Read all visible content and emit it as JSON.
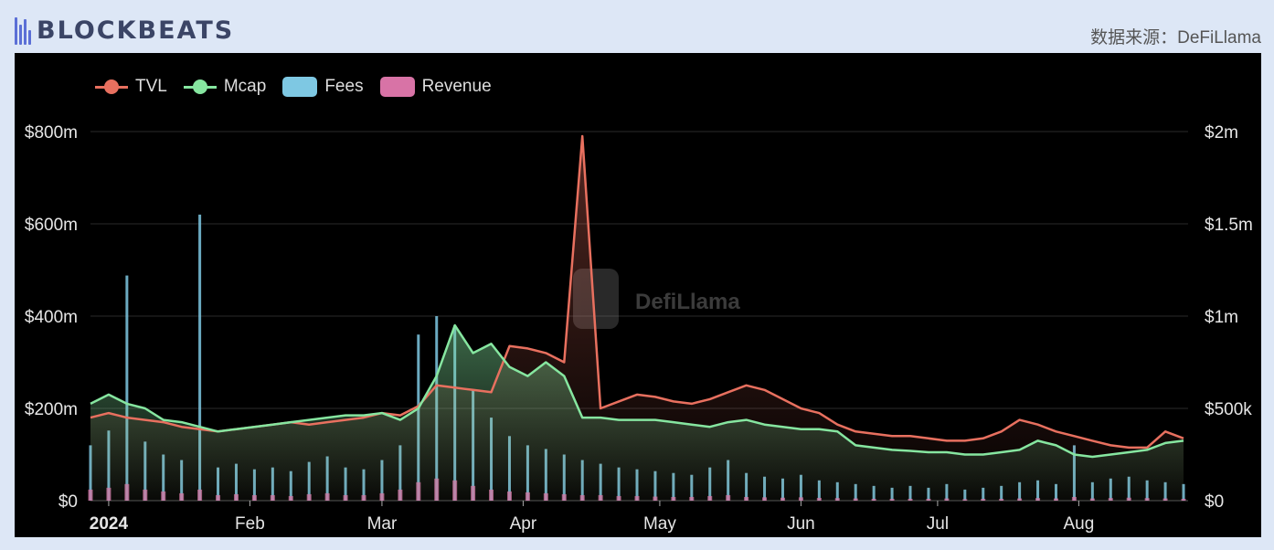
{
  "header": {
    "logo": "BLOCKBEATS",
    "source": "数据来源：DeFiLlama"
  },
  "watermark": "DefiLlama",
  "colors": {
    "tvl": "#e8705f",
    "mcap": "#86e6a0",
    "fees": "#7ec8e3",
    "revenue": "#d873a6",
    "background": "#000000",
    "page": "#dde7f6"
  },
  "chart_data": {
    "type": "line",
    "title": "",
    "legend": {
      "placement": "top-left",
      "entries": [
        "TVL",
        "Mcap",
        "Fees",
        "Revenue"
      ]
    },
    "grid": true,
    "x_ticks": [
      {
        "label": "2024",
        "date": "2024-01-01"
      },
      {
        "label": "Feb",
        "date": "2024-02-01"
      },
      {
        "label": "Mar",
        "date": "2024-03-01"
      },
      {
        "label": "Apr",
        "date": "2024-04-01"
      },
      {
        "label": "May",
        "date": "2024-05-01"
      },
      {
        "label": "Jun",
        "date": "2024-06-01"
      },
      {
        "label": "Jul",
        "date": "2024-07-01"
      },
      {
        "label": "Aug",
        "date": "2024-08-01"
      }
    ],
    "xlim": [
      "2023-12-28",
      "2024-08-25"
    ],
    "y_left": {
      "unit": "$m",
      "ylim": [
        0,
        800
      ],
      "ticks": [
        {
          "v": 0,
          "label": "$0"
        },
        {
          "v": 200,
          "label": "$200m"
        },
        {
          "v": 400,
          "label": "$400m"
        },
        {
          "v": 600,
          "label": "$600m"
        },
        {
          "v": 800,
          "label": "$800m"
        }
      ]
    },
    "y_right": {
      "unit": "$k",
      "ylim": [
        0,
        2000
      ],
      "ticks": [
        {
          "v": 0,
          "label": "$0"
        },
        {
          "v": 500,
          "label": "$500k"
        },
        {
          "v": 1000,
          "label": "$1m"
        },
        {
          "v": 1500,
          "label": "$1.5m"
        },
        {
          "v": 2000,
          "label": "$2m"
        }
      ]
    },
    "x": [
      "2023-12-28",
      "2024-01-01",
      "2024-01-05",
      "2024-01-09",
      "2024-01-13",
      "2024-01-17",
      "2024-01-21",
      "2024-01-25",
      "2024-01-29",
      "2024-02-02",
      "2024-02-06",
      "2024-02-10",
      "2024-02-14",
      "2024-02-18",
      "2024-02-22",
      "2024-02-26",
      "2024-03-01",
      "2024-03-05",
      "2024-03-09",
      "2024-03-13",
      "2024-03-17",
      "2024-03-21",
      "2024-03-25",
      "2024-03-29",
      "2024-04-02",
      "2024-04-06",
      "2024-04-10",
      "2024-04-14",
      "2024-04-18",
      "2024-04-22",
      "2024-04-26",
      "2024-04-30",
      "2024-05-04",
      "2024-05-08",
      "2024-05-12",
      "2024-05-16",
      "2024-05-20",
      "2024-05-24",
      "2024-05-28",
      "2024-06-01",
      "2024-06-05",
      "2024-06-09",
      "2024-06-13",
      "2024-06-17",
      "2024-06-21",
      "2024-06-25",
      "2024-06-29",
      "2024-07-03",
      "2024-07-07",
      "2024-07-11",
      "2024-07-15",
      "2024-07-19",
      "2024-07-23",
      "2024-07-27",
      "2024-07-31",
      "2024-08-04",
      "2024-08-08",
      "2024-08-12",
      "2024-08-16",
      "2024-08-20",
      "2024-08-24"
    ],
    "series": [
      {
        "name": "TVL",
        "axis": "left",
        "kind": "area-line",
        "values": [
          180,
          190,
          180,
          175,
          170,
          160,
          155,
          150,
          155,
          160,
          165,
          170,
          165,
          170,
          175,
          180,
          190,
          185,
          205,
          250,
          245,
          240,
          235,
          335,
          330,
          320,
          300,
          790,
          200,
          215,
          230,
          225,
          215,
          210,
          220,
          235,
          250,
          240,
          220,
          200,
          190,
          165,
          150,
          145,
          140,
          140,
          135,
          130,
          130,
          135,
          150,
          175,
          165,
          150,
          140,
          130,
          120,
          115,
          115,
          150,
          135
        ]
      },
      {
        "name": "Mcap",
        "axis": "left",
        "kind": "area-line",
        "values": [
          210,
          230,
          210,
          200,
          175,
          170,
          160,
          150,
          155,
          160,
          165,
          170,
          175,
          180,
          185,
          185,
          190,
          175,
          200,
          270,
          380,
          320,
          340,
          290,
          270,
          300,
          270,
          180,
          180,
          175,
          175,
          175,
          170,
          165,
          160,
          170,
          175,
          165,
          160,
          155,
          155,
          150,
          120,
          115,
          110,
          108,
          105,
          105,
          100,
          100,
          105,
          110,
          130,
          120,
          100,
          95,
          100,
          105,
          110,
          125,
          130
        ]
      },
      {
        "name": "Fees",
        "axis": "right",
        "kind": "bar",
        "values": [
          300,
          380,
          1220,
          320,
          250,
          220,
          1550,
          180,
          200,
          170,
          180,
          160,
          210,
          240,
          180,
          170,
          220,
          300,
          900,
          1000,
          950,
          600,
          450,
          350,
          300,
          280,
          250,
          220,
          200,
          180,
          170,
          160,
          150,
          140,
          180,
          220,
          150,
          130,
          120,
          140,
          110,
          100,
          90,
          80,
          70,
          80,
          70,
          90,
          60,
          70,
          80,
          100,
          110,
          90,
          300,
          100,
          120,
          130,
          110,
          100,
          90
        ]
      },
      {
        "name": "Revenue",
        "axis": "right",
        "kind": "bar",
        "values": [
          60,
          70,
          90,
          60,
          50,
          40,
          60,
          30,
          35,
          30,
          30,
          25,
          35,
          40,
          30,
          30,
          40,
          60,
          100,
          120,
          110,
          80,
          60,
          50,
          45,
          40,
          35,
          30,
          30,
          25,
          25,
          22,
          20,
          20,
          25,
          30,
          20,
          18,
          16,
          18,
          15,
          14,
          12,
          10,
          10,
          10,
          10,
          12,
          8,
          10,
          10,
          12,
          14,
          12,
          20,
          12,
          14,
          16,
          14,
          12,
          10
        ]
      }
    ]
  }
}
